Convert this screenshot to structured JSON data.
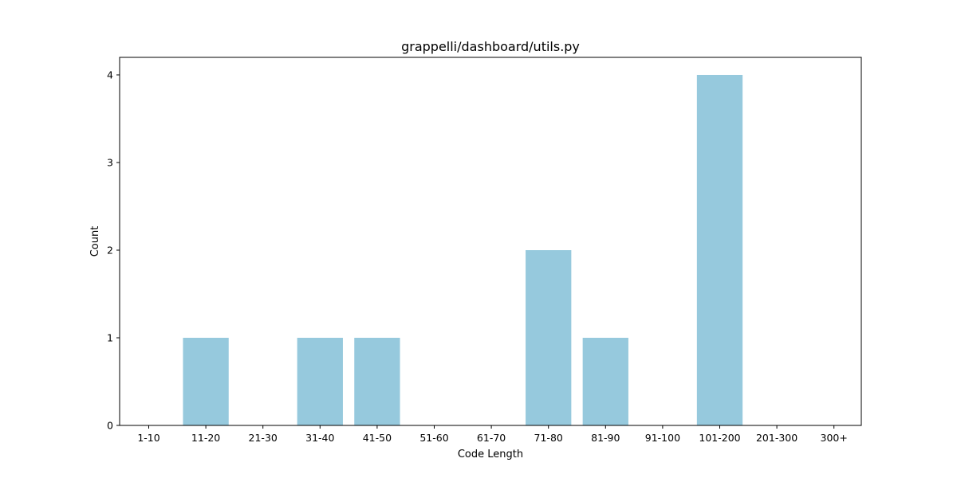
{
  "chart_data": {
    "type": "bar",
    "title": "grappelli/dashboard/utils.py",
    "xlabel": "Code Length",
    "ylabel": "Count",
    "categories": [
      "1-10",
      "11-20",
      "21-30",
      "31-40",
      "41-50",
      "51-60",
      "61-70",
      "71-80",
      "81-90",
      "91-100",
      "101-200",
      "201-300",
      "300+"
    ],
    "values": [
      0,
      1,
      0,
      1,
      1,
      0,
      0,
      2,
      1,
      0,
      4,
      0,
      0
    ],
    "ylim": [
      0,
      4.2
    ],
    "yticks": [
      0,
      1,
      2,
      3,
      4
    ],
    "grid": false,
    "colors": {
      "bar": "#96c9dd",
      "axis": "#000000"
    }
  }
}
